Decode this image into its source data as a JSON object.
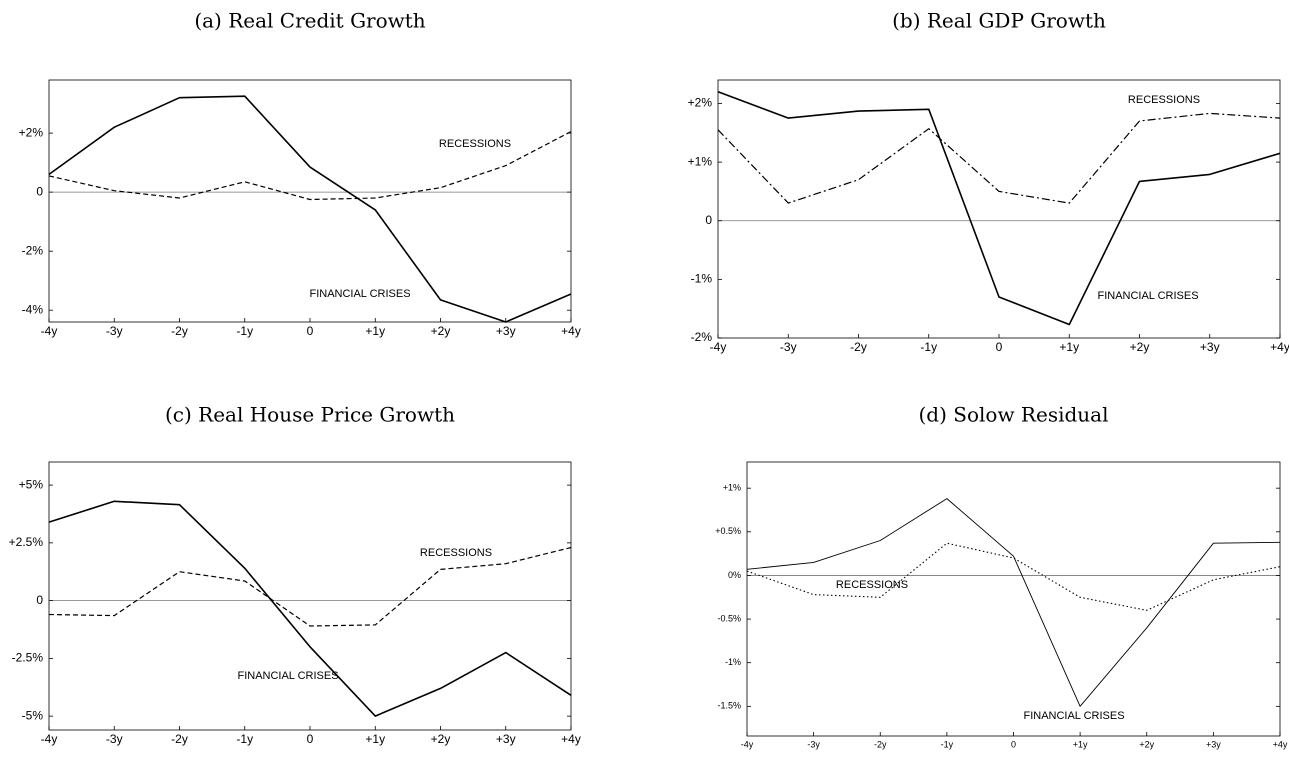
{
  "chart_data": [
    {
      "type": "line",
      "title": "(a) Real Credit Growth",
      "categories": [
        "-4y",
        "-3y",
        "-2y",
        "-1y",
        "0",
        "+1y",
        "+2y",
        "+3y",
        "+4y"
      ],
      "ylim": [
        -4.4,
        3.8
      ],
      "yticks": [
        {
          "value": -4,
          "label": "-4%"
        },
        {
          "value": -2,
          "label": "-2%"
        },
        0,
        {
          "value": 2,
          "label": "+2%"
        }
      ],
      "series": [
        {
          "name": "FINANCIAL CRISES",
          "color": "#000000",
          "style": "solid",
          "values": [
            0.6,
            2.2,
            3.2,
            3.25,
            0.85,
            -0.6,
            -3.65,
            -4.4,
            -3.45
          ]
        },
        {
          "name": "RECESSIONS",
          "color": "#000000",
          "style": "dashed",
          "values": [
            0.55,
            0.05,
            -0.2,
            0.35,
            -0.25,
            -0.2,
            0.15,
            0.9,
            2.05
          ]
        }
      ]
    },
    {
      "type": "line",
      "title": "(b) Real GDP Growth",
      "categories": [
        "-4y",
        "-3y",
        "-2y",
        "-1y",
        "0",
        "+1y",
        "+2y",
        "+3y",
        "+4y"
      ],
      "ylim": [
        -2,
        2.4
      ],
      "yticks": [
        {
          "value": -2,
          "label": "-2%"
        },
        {
          "value": -1,
          "label": "-1%"
        },
        0,
        {
          "value": 1,
          "label": "+1%"
        },
        {
          "value": 2,
          "label": "+2%"
        }
      ],
      "series": [
        {
          "name": "FINANCIAL CRISES",
          "color": "#000000",
          "style": "solid",
          "values": [
            2.2,
            1.75,
            1.87,
            1.9,
            -1.3,
            -1.77,
            0.67,
            0.79,
            1.15
          ]
        },
        {
          "name": "RECESSIONS",
          "color": "#000000",
          "style": "dashdot",
          "values": [
            1.55,
            0.3,
            0.7,
            1.57,
            0.5,
            0.3,
            1.7,
            1.83,
            1.75
          ]
        }
      ]
    },
    {
      "type": "line",
      "title": "(c) Real House Price Growth",
      "categories": [
        "-4y",
        "-3y",
        "-2y",
        "-1y",
        "0",
        "+1y",
        "+2y",
        "+3y",
        "+4y"
      ],
      "ylim": [
        -5.6,
        6
      ],
      "yticks": [
        {
          "value": -5,
          "label": "-5%"
        },
        {
          "value": -2.5,
          "label": "-2.5%"
        },
        0,
        {
          "value": 2.5,
          "label": "+2.5%"
        },
        {
          "value": 5,
          "label": "+5%"
        }
      ],
      "series": [
        {
          "name": "FINANCIAL CRISES",
          "color": "#000000",
          "style": "solid",
          "values": [
            3.4,
            4.3,
            4.15,
            1.4,
            -2,
            -5,
            -3.8,
            -2.25,
            -4.1
          ]
        },
        {
          "name": "RECESSIONS",
          "color": "#000000",
          "style": "dashed",
          "values": [
            -0.6,
            -0.65,
            1.25,
            0.85,
            -1.1,
            -1.05,
            1.35,
            1.6,
            2.3
          ]
        }
      ]
    },
    {
      "type": "line",
      "title": "(d) Solow Residual",
      "categories": [
        "-4y",
        "-3y",
        "-2y",
        "-1y",
        "0",
        "+1y",
        "+2y",
        "+3y",
        "+4y"
      ],
      "ylim": [
        -1.84,
        1.3
      ],
      "yticks": [
        {
          "value": -1.5,
          "label": "-1.5%"
        },
        {
          "value": -1,
          "label": "-1%"
        },
        {
          "value": -0.5,
          "label": "-0.5%"
        },
        {
          "value": 0,
          "label": "0%"
        },
        {
          "value": 0.5,
          "label": "+0.5%"
        },
        {
          "value": 1,
          "label": "+1%"
        }
      ],
      "series": [
        {
          "name": "FINANCIAL CRISES",
          "color": "#000000",
          "style": "thin",
          "values": [
            0.07,
            0.15,
            0.4,
            0.88,
            0.22,
            -1.5,
            -0.6,
            0.37,
            0.38
          ]
        },
        {
          "name": "RECESSIONS",
          "color": "#000000",
          "style": "dotted",
          "values": [
            0.05,
            -0.22,
            -0.25,
            0.37,
            0.2,
            -0.25,
            -0.4,
            -0.05,
            0.1
          ]
        }
      ]
    }
  ]
}
